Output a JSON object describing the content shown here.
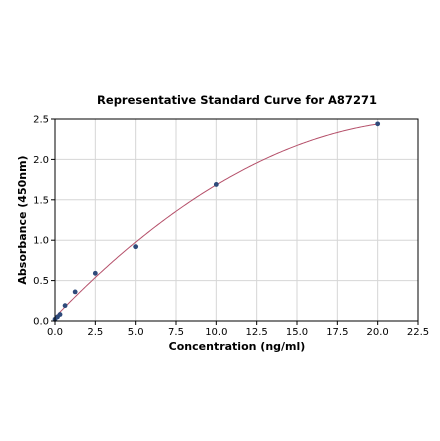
{
  "chart_data": {
    "type": "scatter",
    "title": "Representative Standard Curve for A87271",
    "xlabel": "Concentration (ng/ml)",
    "ylabel": "Absorbance (450nm)",
    "xlim": [
      0,
      22.5
    ],
    "ylim": [
      0,
      2.5
    ],
    "xticks": [
      "0.0",
      "2.5",
      "5.0",
      "7.5",
      "10.0",
      "12.5",
      "15.0",
      "17.5",
      "20.0",
      "22.5"
    ],
    "yticks": [
      "0.0",
      "0.5",
      "1.0",
      "1.5",
      "2.0",
      "2.5"
    ],
    "grid": true,
    "series": [
      {
        "x": [
          0,
          0.156,
          0.313,
          0.625,
          1.25,
          2.5,
          5,
          10,
          20
        ],
        "y": [
          0.02,
          0.05,
          0.08,
          0.19,
          0.36,
          0.59,
          0.92,
          1.69,
          2.44
        ]
      }
    ],
    "fit_curve": {
      "type": "line",
      "x_range": [
        0,
        20
      ],
      "color": "#b5506a"
    },
    "point_color": "#2e4a7a"
  }
}
